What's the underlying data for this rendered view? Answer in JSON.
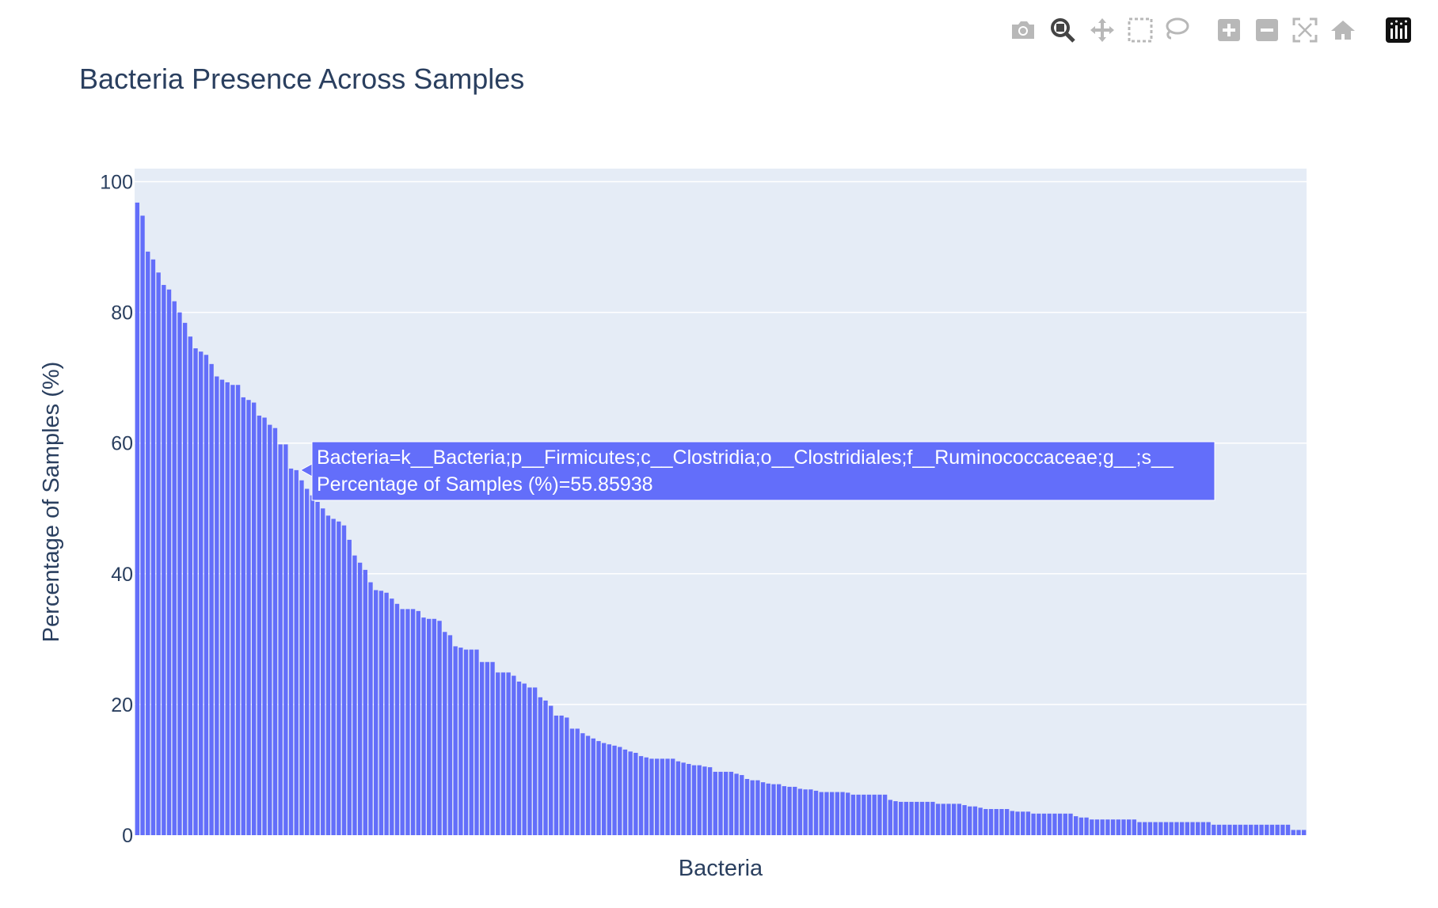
{
  "toolbar": {
    "buttons": [
      {
        "name": "camera-icon",
        "label": "Download plot as a png"
      },
      {
        "name": "zoom-icon",
        "label": "Zoom"
      },
      {
        "name": "pan-icon",
        "label": "Pan"
      },
      {
        "name": "box-select-icon",
        "label": "Box Select"
      },
      {
        "name": "lasso-select-icon",
        "label": "Lasso Select"
      },
      {
        "name": "zoom-in-icon",
        "label": "Zoom in"
      },
      {
        "name": "zoom-out-icon",
        "label": "Zoom out"
      },
      {
        "name": "autoscale-icon",
        "label": "Autoscale"
      },
      {
        "name": "reset-axes-icon",
        "label": "Reset axes"
      },
      {
        "name": "plotly-logo-icon",
        "label": "Produced with Plotly"
      }
    ],
    "icon_color": "#b8b8b8",
    "active_icon_color": "#444444"
  },
  "chart_data": {
    "type": "bar",
    "title": "Bacteria Presence Across Samples",
    "xlabel": "Bacteria",
    "ylabel": "Percentage of Samples (%)",
    "ylim": [
      0,
      102
    ],
    "yticks": [
      "0",
      "20",
      "40",
      "60",
      "80",
      "100"
    ],
    "grid": true,
    "bar_color": "#636efa",
    "plot_bg": "#e5ecf6",
    "values": [
      96.8,
      94.8,
      89.3,
      88.1,
      86.1,
      84.2,
      83.5,
      81.7,
      80.0,
      78.4,
      76.3,
      74.5,
      74.0,
      73.5,
      72.1,
      70.2,
      69.7,
      69.3,
      68.9,
      68.9,
      67.0,
      66.6,
      66.2,
      64.2,
      63.9,
      62.8,
      62.3,
      59.8,
      59.8,
      56.1,
      55.85938,
      54.3,
      53.0,
      52.0,
      51.0,
      50.0,
      48.9,
      48.4,
      48.0,
      47.4,
      45.2,
      42.8,
      41.7,
      40.6,
      38.7,
      37.5,
      37.4,
      37.1,
      36.2,
      35.4,
      34.6,
      34.6,
      34.6,
      34.3,
      33.3,
      33.1,
      33.1,
      32.8,
      31.1,
      30.6,
      28.9,
      28.7,
      28.4,
      28.4,
      28.4,
      26.5,
      26.5,
      26.5,
      24.9,
      24.9,
      24.9,
      24.4,
      23.5,
      23.2,
      22.6,
      22.6,
      21.1,
      20.6,
      19.8,
      18.3,
      18.3,
      18.0,
      16.3,
      16.3,
      15.6,
      15.2,
      14.8,
      14.4,
      14.1,
      13.9,
      13.7,
      13.5,
      13.1,
      12.8,
      12.6,
      12.1,
      11.9,
      11.7,
      11.7,
      11.7,
      11.7,
      11.7,
      11.3,
      11.1,
      10.9,
      10.7,
      10.7,
      10.5,
      10.4,
      9.7,
      9.7,
      9.7,
      9.7,
      9.4,
      9.2,
      8.6,
      8.4,
      8.4,
      8.1,
      7.9,
      7.8,
      7.8,
      7.5,
      7.4,
      7.4,
      7.1,
      7.0,
      7.0,
      6.8,
      6.6,
      6.6,
      6.6,
      6.6,
      6.6,
      6.5,
      6.2,
      6.2,
      6.2,
      6.2,
      6.2,
      6.2,
      6.2,
      5.4,
      5.2,
      5.1,
      5.1,
      5.1,
      5.1,
      5.1,
      5.1,
      5.1,
      4.8,
      4.8,
      4.8,
      4.8,
      4.8,
      4.6,
      4.4,
      4.4,
      4.2,
      4.0,
      4.0,
      4.0,
      4.0,
      4.0,
      3.7,
      3.6,
      3.6,
      3.6,
      3.3,
      3.3,
      3.3,
      3.3,
      3.3,
      3.3,
      3.3,
      3.3,
      2.9,
      2.7,
      2.7,
      2.4,
      2.4,
      2.4,
      2.4,
      2.4,
      2.4,
      2.4,
      2.4,
      2.4,
      2.0,
      2.0,
      2.0,
      2.0,
      2.0,
      2.0,
      2.0,
      2.0,
      2.0,
      2.0,
      2.0,
      2.0,
      2.0,
      2.0,
      1.6,
      1.6,
      1.6,
      1.6,
      1.6,
      1.6,
      1.6,
      1.6,
      1.6,
      1.6,
      1.6,
      1.6,
      1.6,
      1.6,
      1.6,
      0.8,
      0.8,
      0.8
    ],
    "hover": {
      "bar_index": 30,
      "line1": "Bacteria=k__Bacteria;p__Firmicutes;c__Clostridia;o__Clostridiales;f__Ruminococcaceae;g__;s__",
      "line2": "Percentage of Samples (%)=55.85938"
    }
  }
}
